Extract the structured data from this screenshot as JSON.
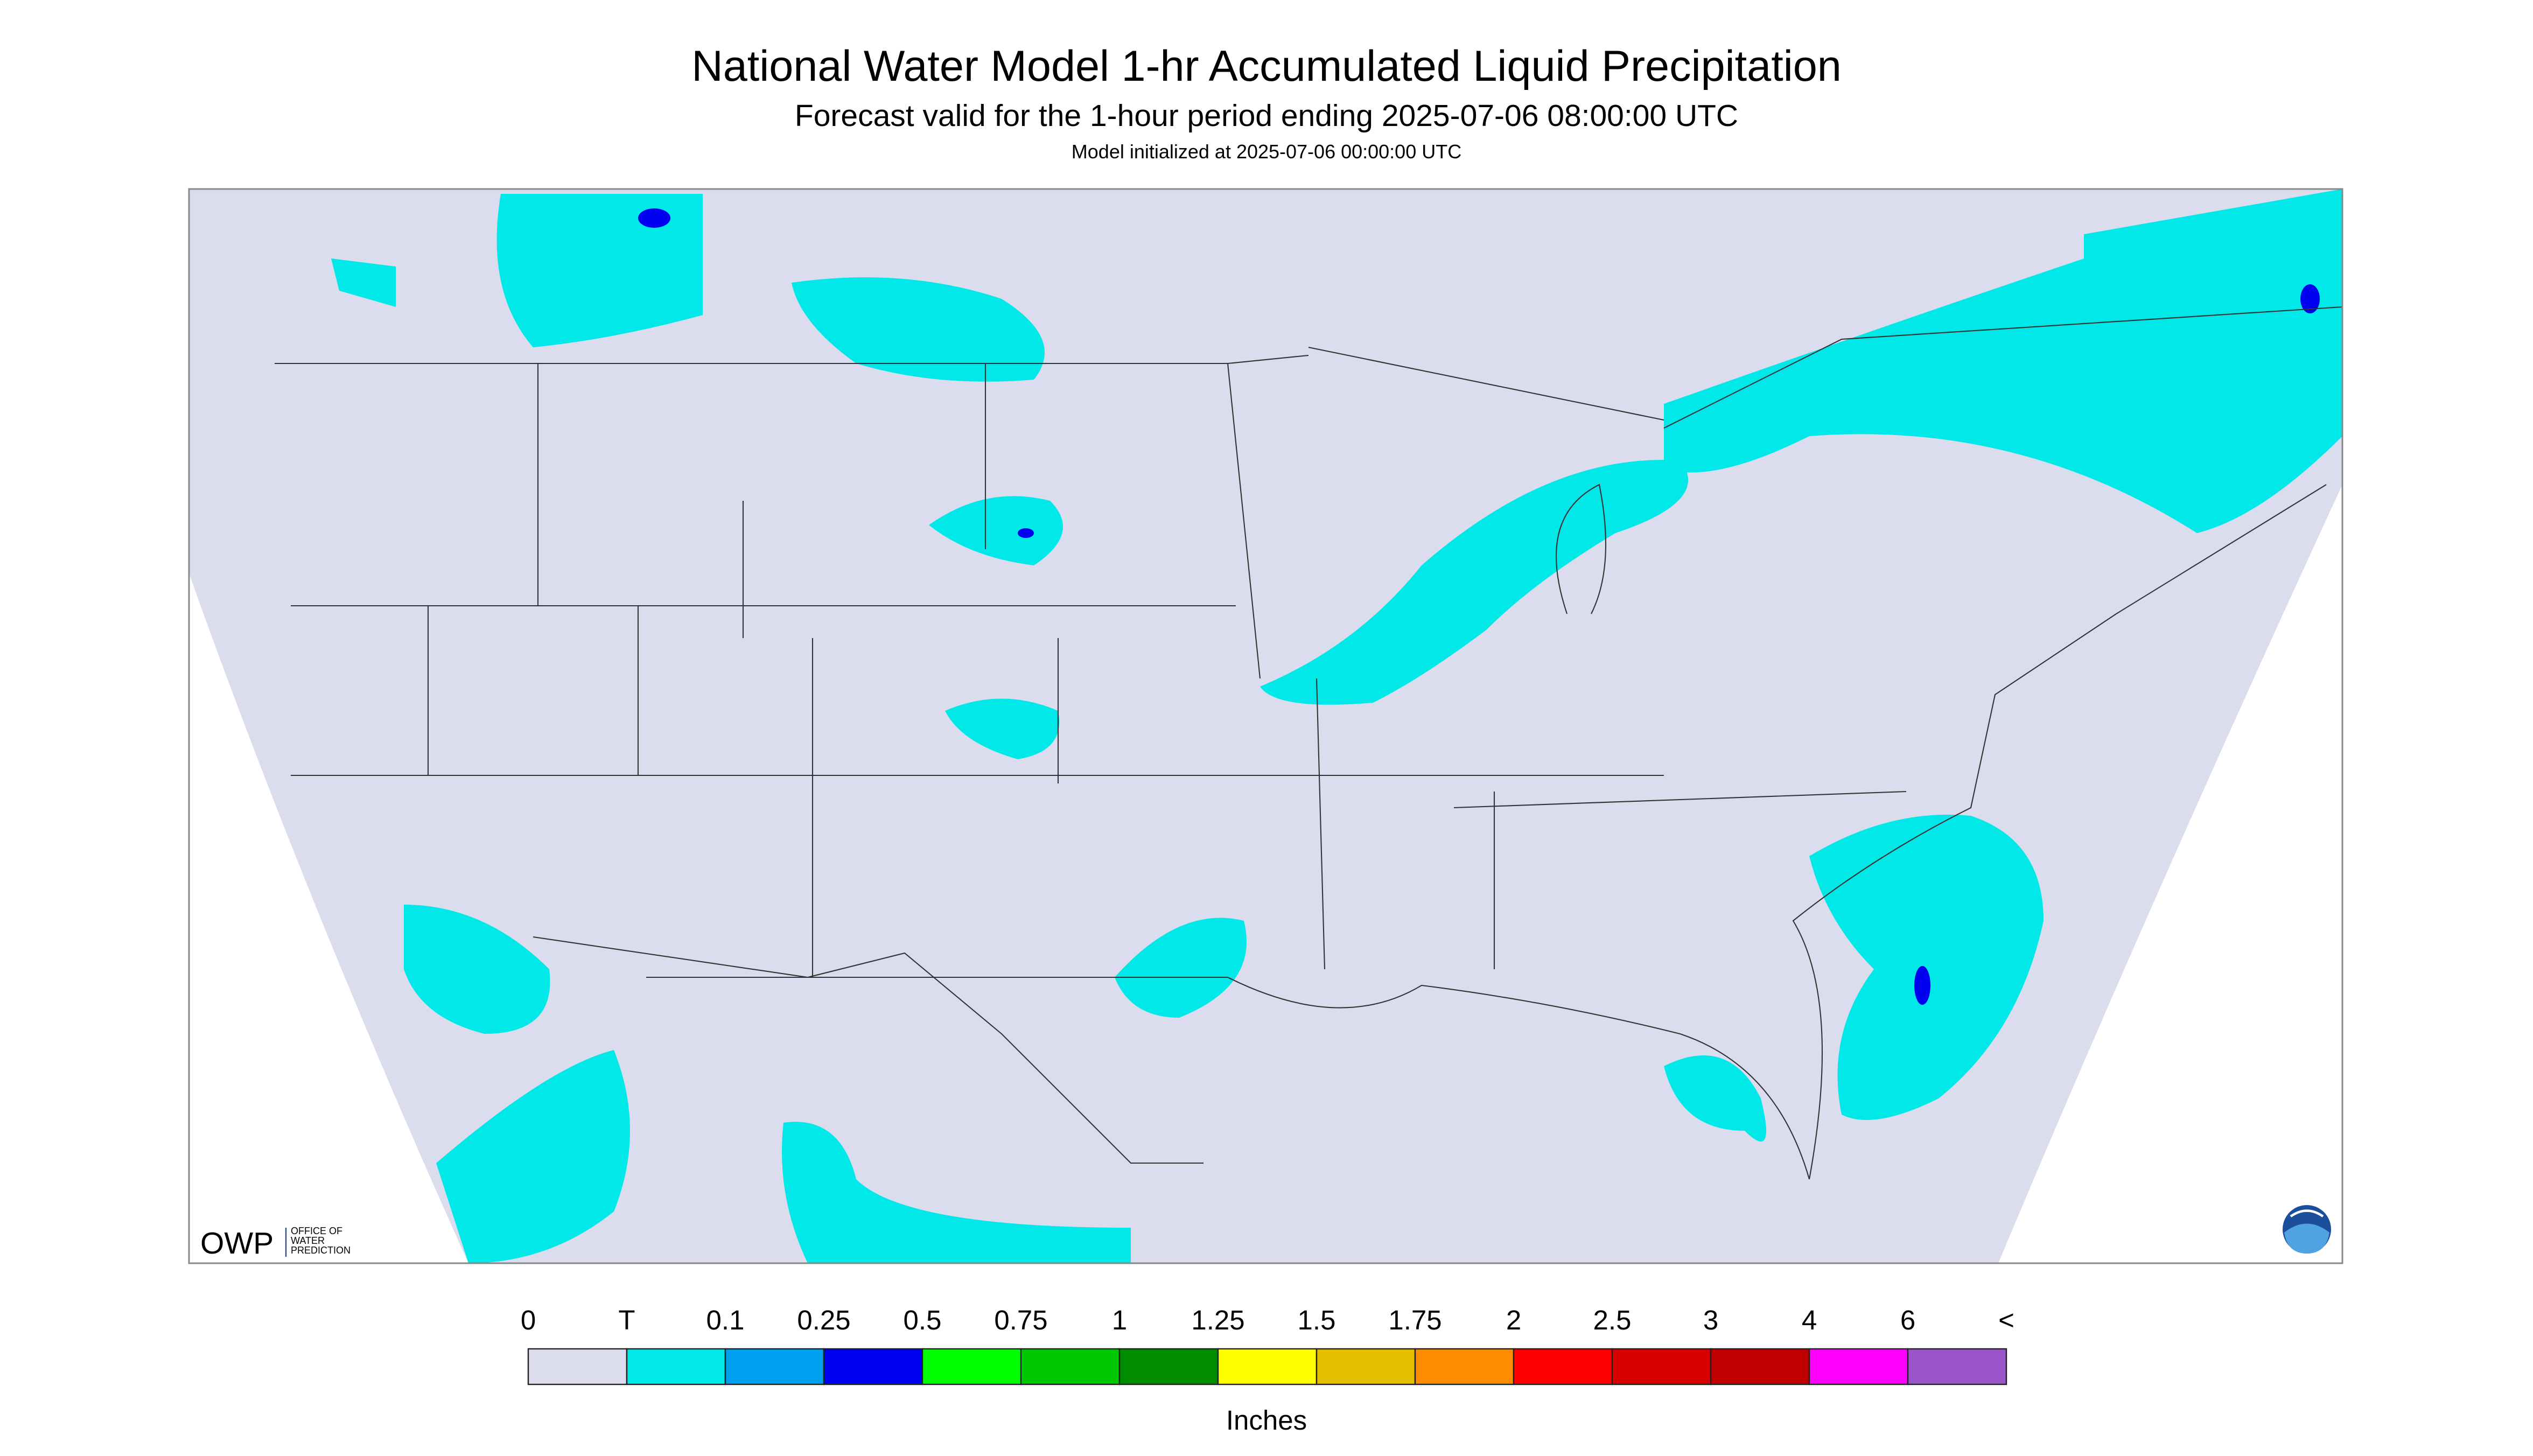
{
  "header": {
    "title": "National Water Model 1-hr Accumulated Liquid Precipitation",
    "subtitle": "Forecast valid for the 1-hour period ending 2025-07-06 08:00:00 UTC",
    "init": "Model initialized at 2025-07-06 00:00:00 UTC"
  },
  "legend": {
    "labels": [
      "0",
      "T",
      "0.1",
      "0.25",
      "0.5",
      "0.75",
      "1",
      "1.25",
      "1.5",
      "1.75",
      "2",
      "2.5",
      "3",
      "4",
      "6",
      "<"
    ],
    "colors": [
      "#dcdcef",
      "#00e8e8",
      "#00a0f0",
      "#0000f0",
      "#00ff00",
      "#00c800",
      "#008c00",
      "#ffff00",
      "#e6c000",
      "#ff8c00",
      "#ff0000",
      "#d80000",
      "#c00000",
      "#ff00ff",
      "#9955c9"
    ],
    "unit": "Inches"
  },
  "logo": {
    "abbr": "OWP",
    "text": [
      "OFFICE OF",
      "WATER",
      "PREDICTION"
    ]
  }
}
